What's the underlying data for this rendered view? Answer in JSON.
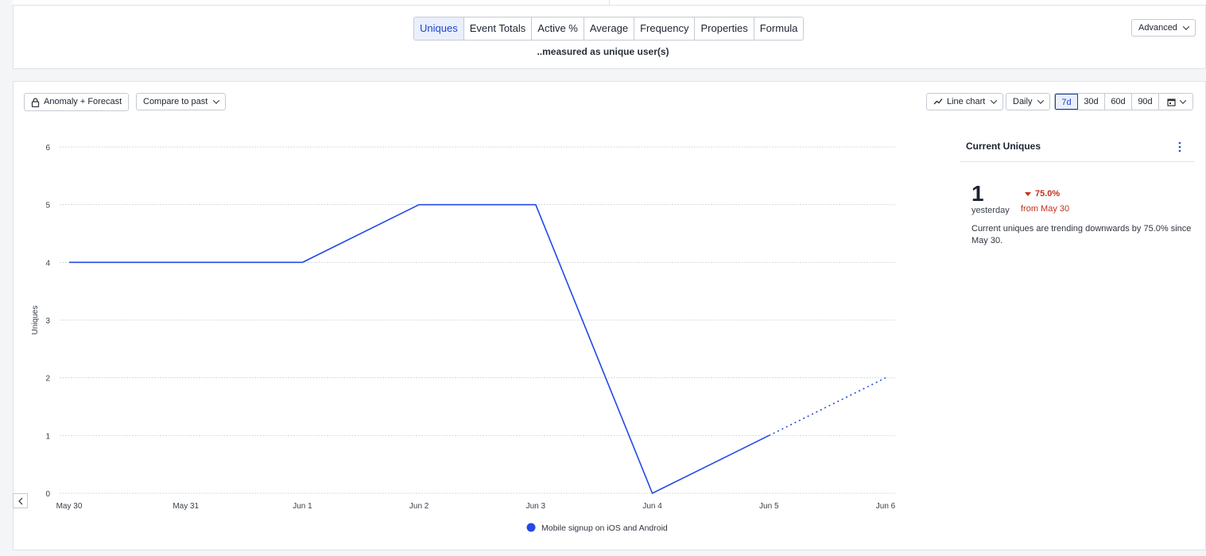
{
  "metric_tabs": [
    "Uniques",
    "Event Totals",
    "Active %",
    "Average",
    "Frequency",
    "Properties",
    "Formula"
  ],
  "active_tab": "Uniques",
  "measured_text": "..measured as unique user(s)",
  "advanced_label": "Advanced",
  "toolbar": {
    "anomaly_label": "Anomaly + Forecast",
    "compare_label": "Compare to past",
    "chart_type_label": "Line chart",
    "interval_label": "Daily",
    "ranges": [
      "7d",
      "30d",
      "60d",
      "90d"
    ],
    "active_range": "7d"
  },
  "side_panel": {
    "title": "Current Uniques",
    "value": "1",
    "value_caption": "yesterday",
    "change": "75.0%",
    "change_from": "from May 30",
    "description": "Current uniques are trending downwards by 75.0% since May 30.",
    "change_color": "#c0321f"
  },
  "chart_data": {
    "type": "line",
    "categories": [
      "May 30",
      "May 31",
      "Jun 1",
      "Jun 2",
      "Jun 3",
      "Jun 4",
      "Jun 5",
      "Jun 6"
    ],
    "series": [
      {
        "name": "Mobile signup on iOS and Android",
        "values": [
          4,
          4,
          4,
          5,
          5,
          0,
          1,
          2
        ],
        "forecast_from_index": 6,
        "color": "#2449e6"
      }
    ],
    "ylabel": "Uniques",
    "yticks": [
      0,
      1,
      2,
      3,
      4,
      5,
      6
    ],
    "ylim": [
      0,
      6
    ],
    "grid": true,
    "legend_position": "bottom"
  }
}
